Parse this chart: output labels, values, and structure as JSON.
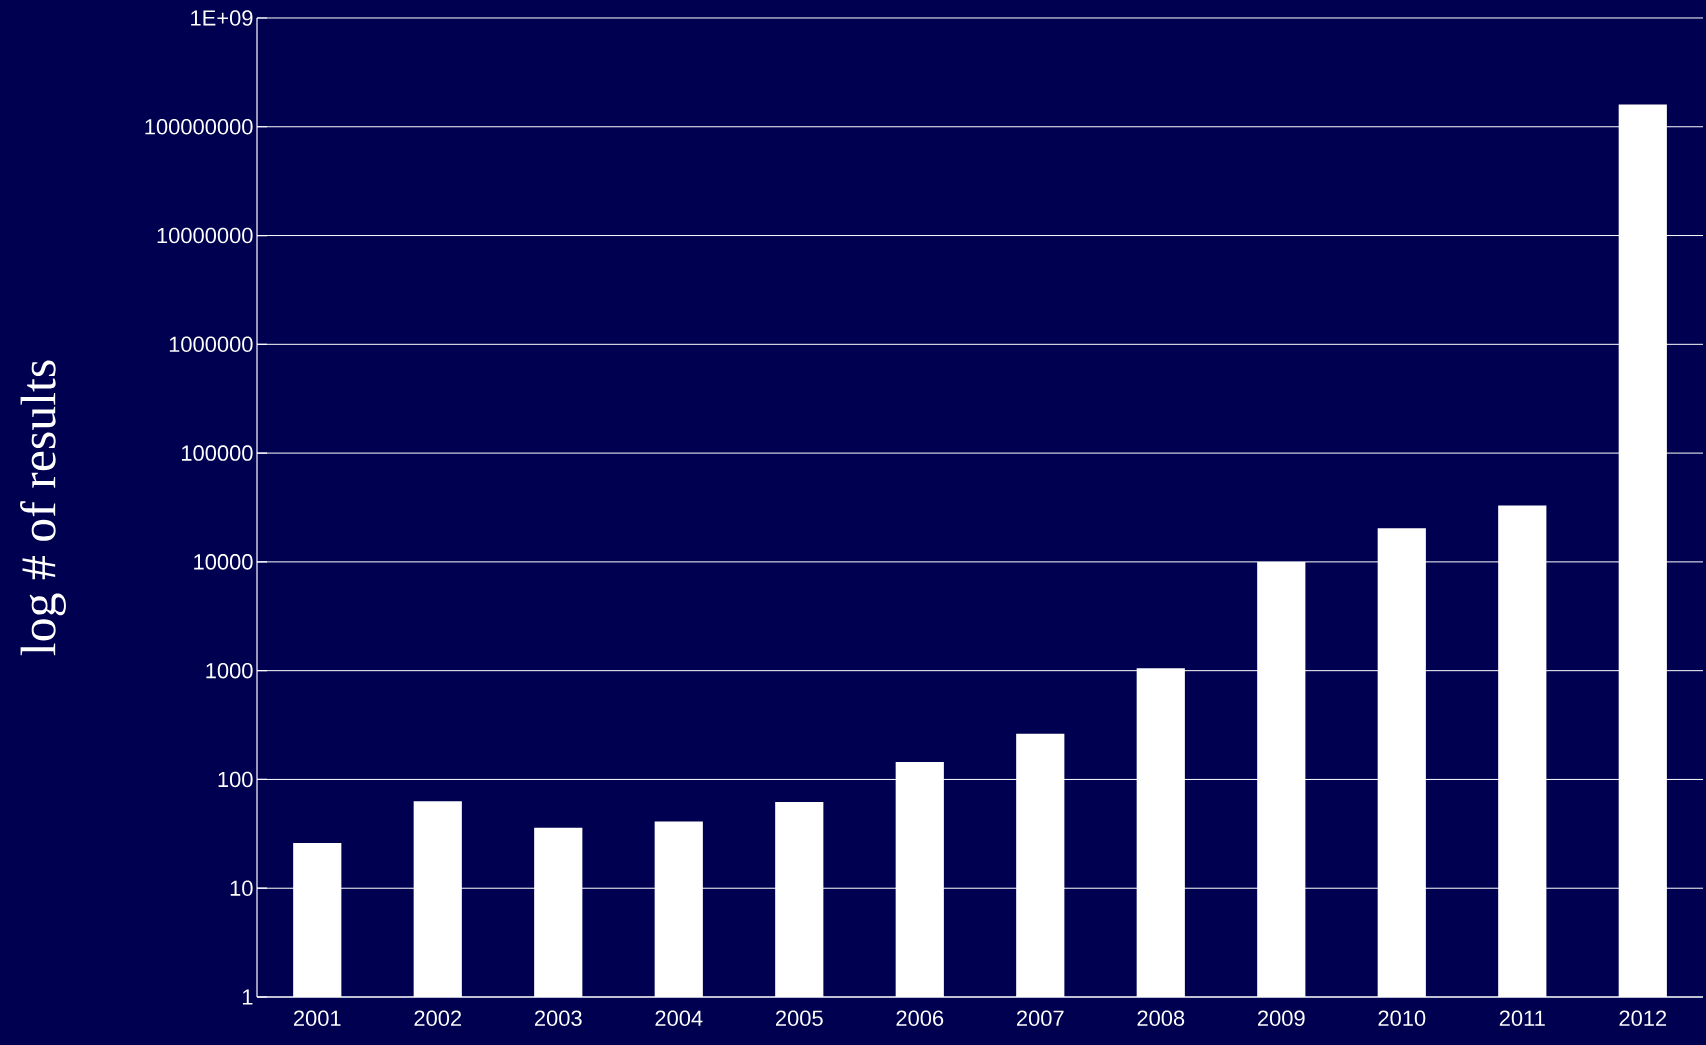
{
  "chart_data": {
    "type": "bar",
    "ylabel": "log # of results",
    "categories": [
      "2001",
      "2002",
      "2003",
      "2004",
      "2005",
      "2006",
      "2007",
      "2008",
      "2009",
      "2010",
      "2011",
      "2012"
    ],
    "values": [
      26,
      63,
      36,
      41,
      62,
      145,
      263,
      1050,
      10000,
      20400,
      33000,
      160000000
    ],
    "color": "#ffffff",
    "log": true,
    "grid": "y",
    "ylim": [
      1,
      1000000000
    ],
    "yticks": [
      1,
      10,
      100,
      1000,
      10000,
      100000,
      1000000,
      10000000,
      100000000,
      {
        "value": 1000000000,
        "label": "1E+09"
      }
    ]
  }
}
